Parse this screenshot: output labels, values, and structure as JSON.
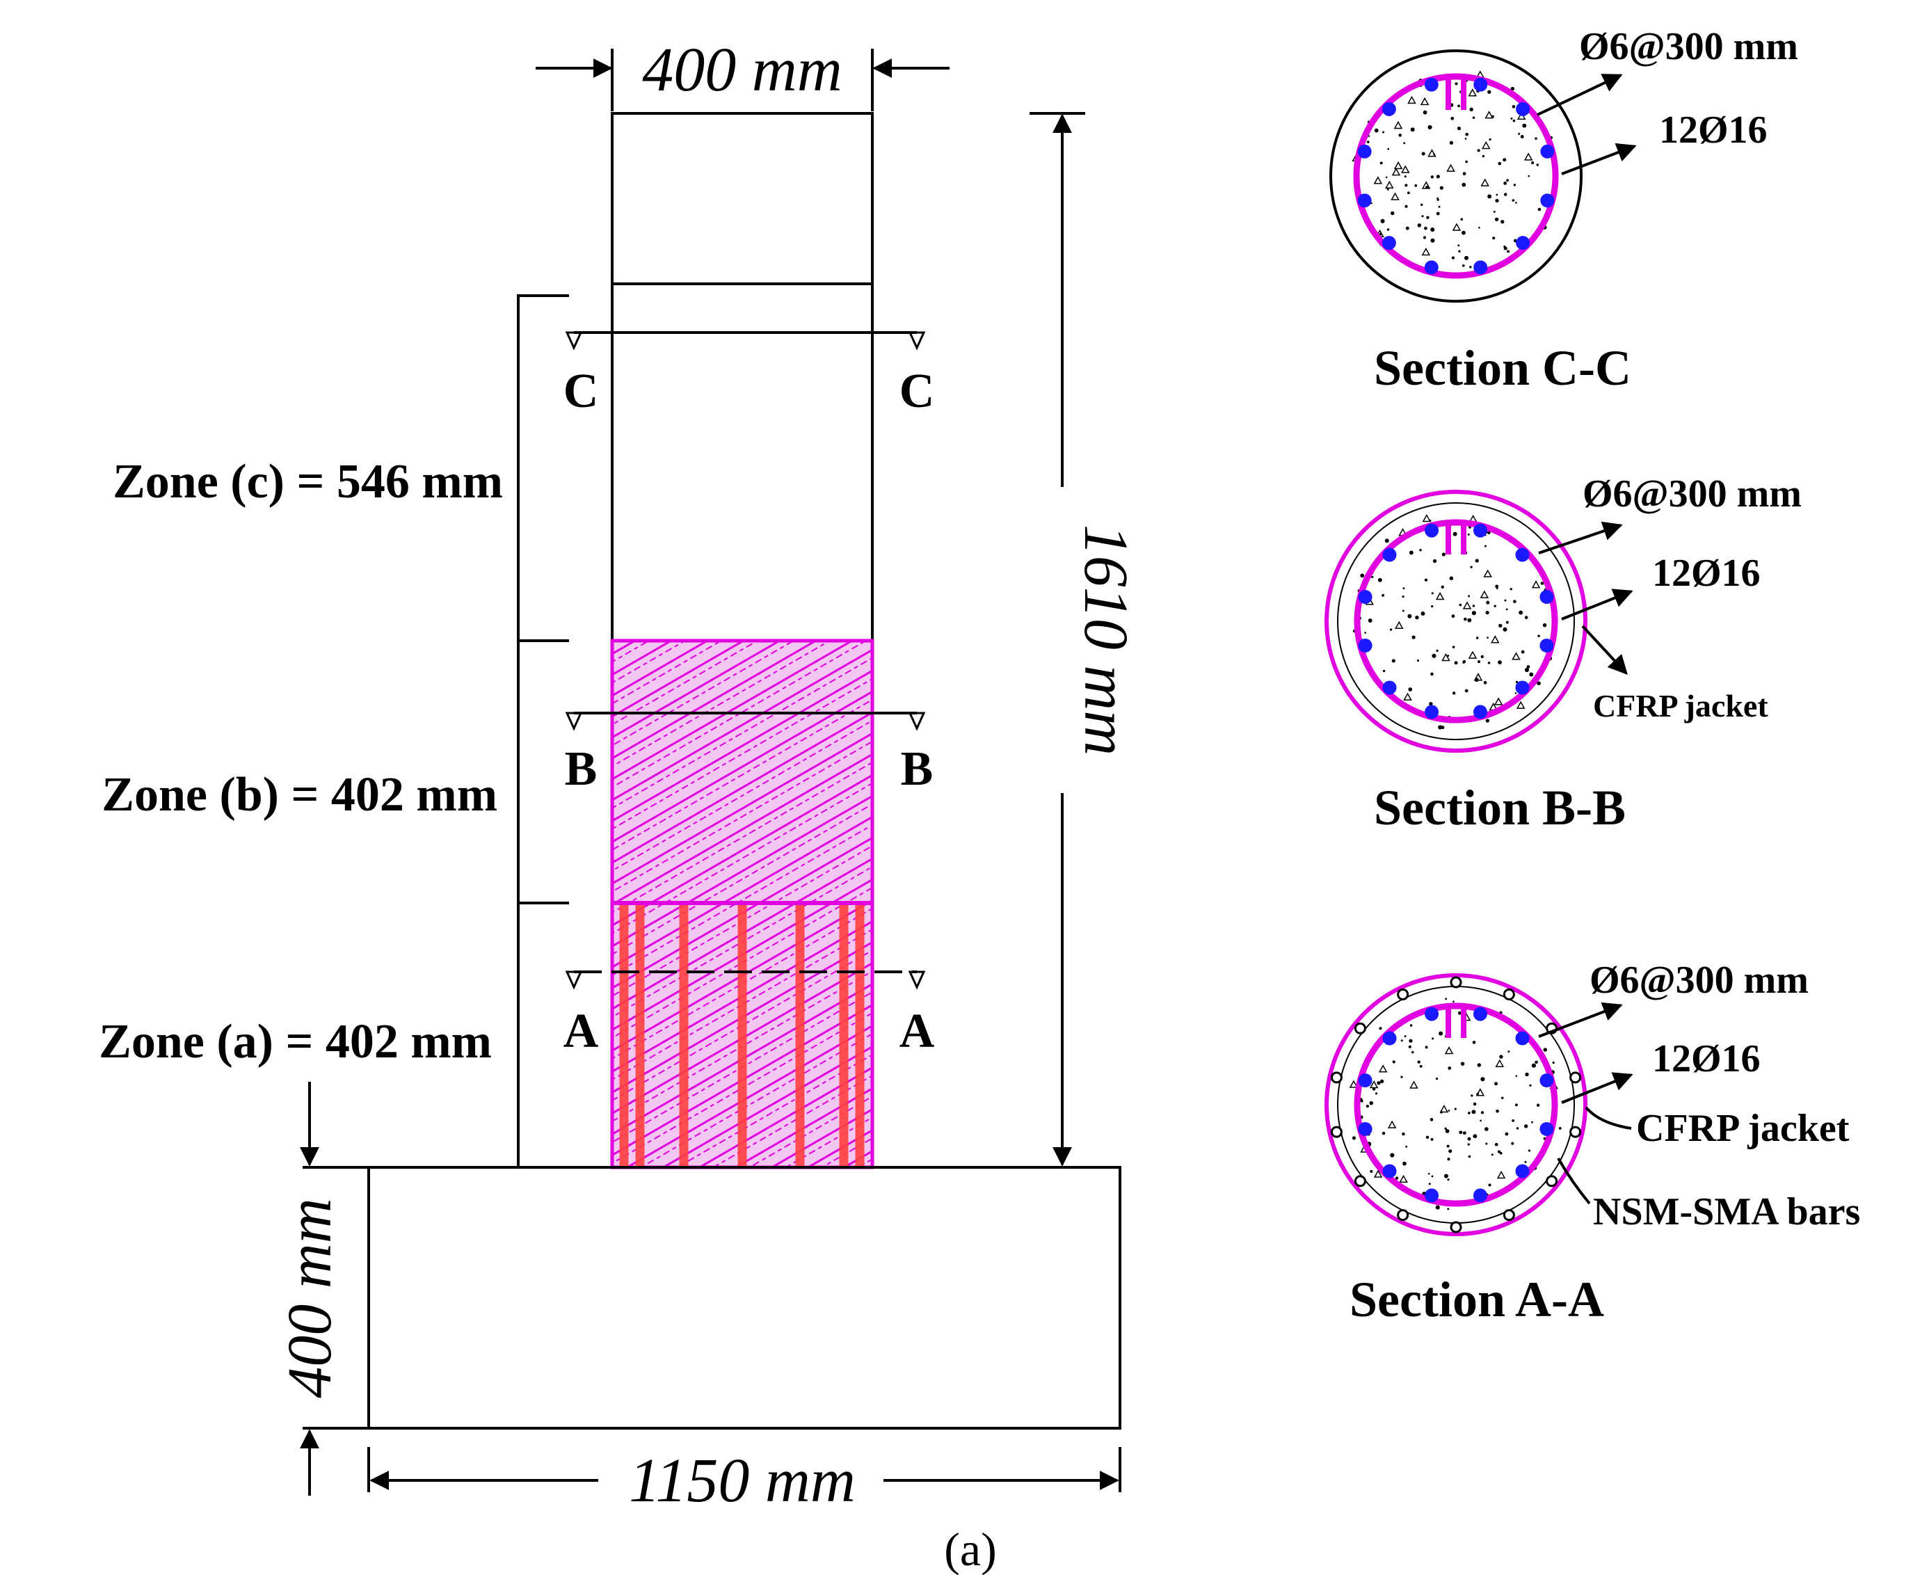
{
  "colors": {
    "line": "#000000",
    "cfrp": "#e000e0",
    "sma": "#ff4040",
    "rebar": "#1a1aff"
  },
  "elevation": {
    "column_width_label": "400 mm",
    "column_height_label": "1610 mm",
    "footing_width_label": "1150 mm",
    "footing_height_label": "400 mm",
    "zones": [
      {
        "id": "c",
        "label": "Zone (c) = 546 mm",
        "length_mm": 546
      },
      {
        "id": "b",
        "label": "Zone (b) = 402 mm",
        "length_mm": 402
      },
      {
        "id": "a",
        "label": "Zone (a) = 402 mm",
        "length_mm": 402
      }
    ],
    "cut_marks": [
      {
        "left": "C",
        "right": "C"
      },
      {
        "left": "B",
        "right": "B"
      },
      {
        "left": "A",
        "right": "A"
      }
    ]
  },
  "sections": [
    {
      "title": "Section C-C",
      "tie_label": "Ø6@300 mm",
      "rebar_label": "12Ø16",
      "jacket_label": "",
      "nsm_label": ""
    },
    {
      "title": "Section B-B",
      "tie_label": "Ø6@300 mm",
      "rebar_label": "12Ø16",
      "jacket_label": "CFRP jacket",
      "nsm_label": ""
    },
    {
      "title": "Section A-A",
      "tie_label": "Ø6@300 mm",
      "rebar_label": "12Ø16",
      "jacket_label": "CFRP  jacket",
      "nsm_label": "NSM-SMA bars"
    }
  ],
  "caption": "(a)"
}
